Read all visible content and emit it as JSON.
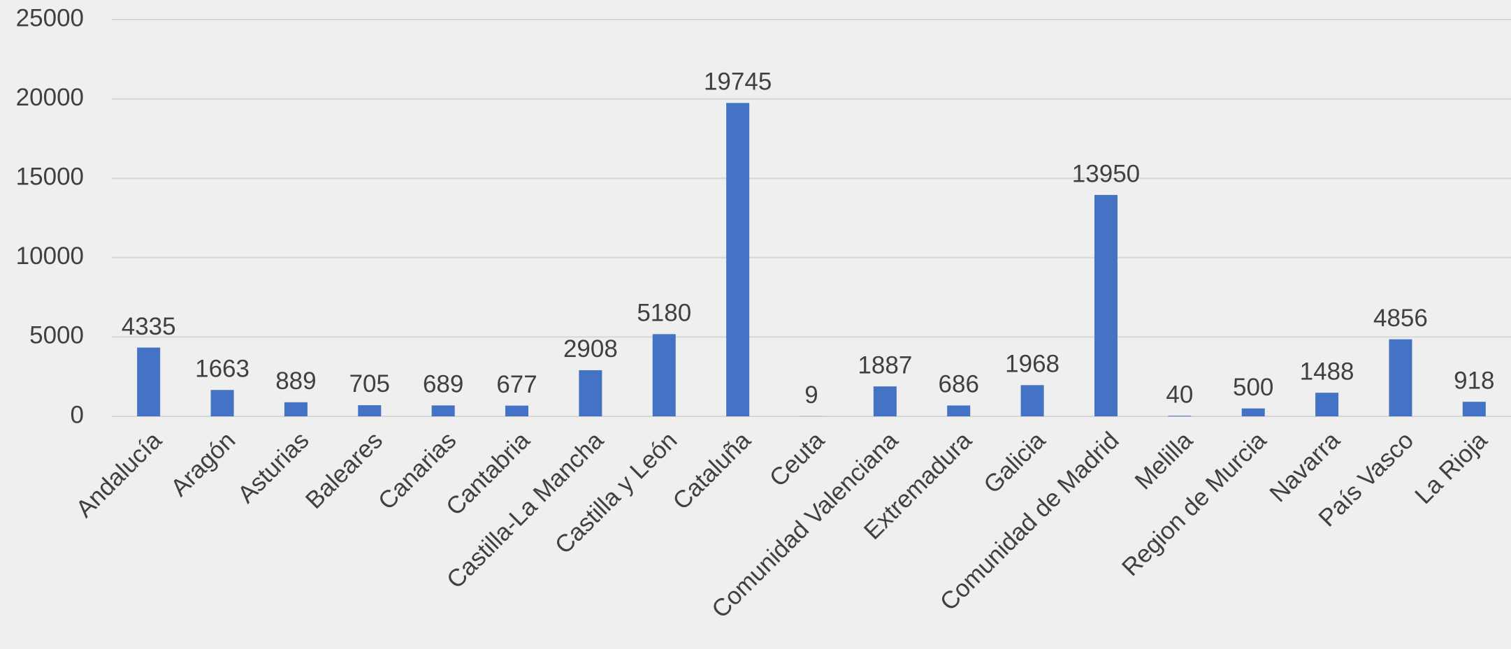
{
  "chart_data": {
    "type": "bar",
    "categories": [
      "Andalucía",
      "Aragón",
      "Asturias",
      "Baleares",
      "Canarias",
      "Cantabria",
      "Castilla-La Mancha",
      "Castilla y León",
      "Cataluña",
      "Ceuta",
      "Comunidad Valenciana",
      "Extremadura",
      "Galicia",
      "Comunidad de Madrid",
      "Melilla",
      "Region de Murcia",
      "Navarra",
      "País Vasco",
      "La Rioja"
    ],
    "values": [
      4335,
      1663,
      889,
      705,
      689,
      677,
      2908,
      5180,
      19745,
      9,
      1887,
      686,
      1968,
      13950,
      40,
      500,
      1488,
      4856,
      918
    ],
    "color": "#4472c4",
    "ylim": [
      0,
      25000
    ],
    "yticks": [
      0,
      5000,
      10000,
      15000,
      20000,
      25000
    ],
    "grid": true
  }
}
